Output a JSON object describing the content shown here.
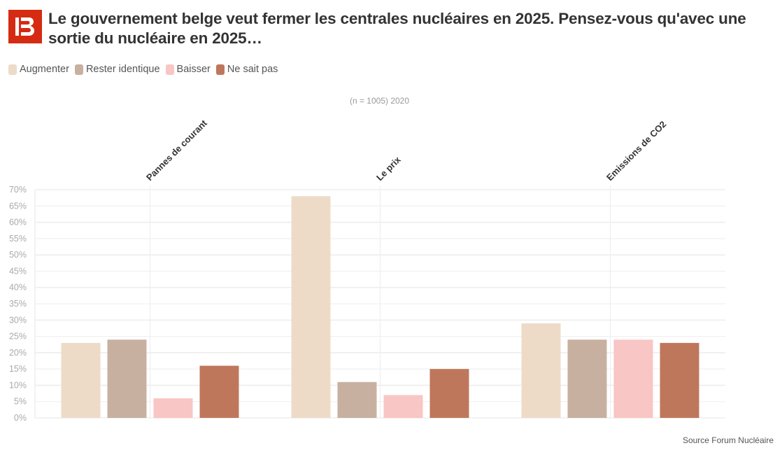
{
  "header": {
    "logo_icon": "brand-logo-b",
    "title": "Le gouvernement belge veut fermer les centrales nucléaires en 2025. Pensez-vous qu'avec une sortie du nucléaire en 2025…"
  },
  "colors": {
    "brand": "#d52b12",
    "gridline": "#eeeeee",
    "axis_text": "#aaaaaa"
  },
  "legend": [
    {
      "label": "Augmenter",
      "color": "#eddbc8"
    },
    {
      "label": "Rester identique",
      "color": "#c8b0a0"
    },
    {
      "label": "Baisser",
      "color": "#f8c6c4"
    },
    {
      "label": "Ne sait pas",
      "color": "#bf775c"
    }
  ],
  "subtitle": "(n = 1005) 2020",
  "source": "Source Forum Nucléaire",
  "chart_data": {
    "type": "bar",
    "title": "Le gouvernement belge veut fermer les centrales nucléaires en 2025. Pensez-vous qu'avec une sortie du nucléaire en 2025…",
    "subtitle": "(n = 1005) 2020",
    "categories": [
      "Pannes de courant",
      "Le prix",
      "Emissions de CO2"
    ],
    "series": [
      {
        "name": "Augmenter",
        "color": "#eddbc8",
        "values": [
          23,
          68,
          29
        ]
      },
      {
        "name": "Rester identique",
        "color": "#c8b0a0",
        "values": [
          24,
          11,
          24
        ]
      },
      {
        "name": "Baisser",
        "color": "#f8c6c4",
        "values": [
          6,
          7,
          24
        ]
      },
      {
        "name": "Ne sait pas",
        "color": "#bf775c",
        "values": [
          16,
          15,
          23
        ]
      }
    ],
    "unit": "%",
    "xlabel": "",
    "ylabel": "",
    "ylim": [
      0,
      70
    ],
    "yticks": [
      "0%",
      "5%",
      "10%",
      "15%",
      "20%",
      "25%",
      "30%",
      "35%",
      "40%",
      "45%",
      "50%",
      "55%",
      "60%",
      "65%",
      "70%"
    ],
    "grid": true,
    "legend_position": "top-left",
    "x_label_position": "top-rotated"
  }
}
